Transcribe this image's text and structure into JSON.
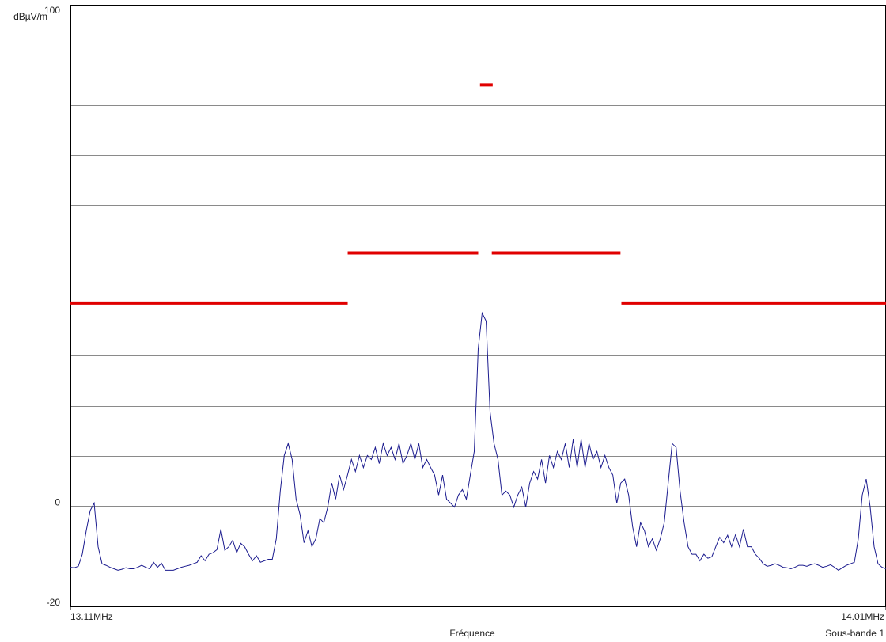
{
  "chart_data": {
    "type": "line",
    "y_unit": "dBµV/m",
    "x_label": "Fréquence",
    "subband": "Sous-bande 1",
    "xlim": [
      13.11,
      14.01
    ],
    "xticks": [
      {
        "value": 13.11,
        "label": "13.11MHz"
      },
      {
        "value": 14.01,
        "label": "14.01MHz"
      }
    ],
    "ylim": [
      -20,
      100
    ],
    "yticks": [
      -20,
      0,
      100
    ],
    "ygrid": [
      -20,
      -10,
      0,
      10,
      20,
      30,
      40,
      50,
      60,
      70,
      80,
      90,
      100
    ],
    "grid": true,
    "series": [
      {
        "name": "Mesure",
        "color": "#1c1c8f",
        "values": [
          -12.2,
          -12.3,
          -12.0,
          -9.6,
          -4.9,
          -0.9,
          0.6,
          -8.1,
          -11.5,
          -11.8,
          -12.2,
          -12.5,
          -12.8,
          -12.6,
          -12.3,
          -12.5,
          -12.5,
          -12.2,
          -11.8,
          -12.2,
          -12.5,
          -11.2,
          -12.2,
          -11.4,
          -12.8,
          -12.8,
          -12.8,
          -12.5,
          -12.2,
          -12.0,
          -11.8,
          -11.5,
          -11.2,
          -9.9,
          -10.9,
          -9.6,
          -9.3,
          -8.7,
          -4.6,
          -8.8,
          -8.1,
          -6.8,
          -9.3,
          -7.4,
          -8.1,
          -9.6,
          -10.9,
          -9.9,
          -11.2,
          -10.9,
          -10.6,
          -10.6,
          -6.5,
          3.0,
          10.1,
          12.5,
          9.3,
          1.4,
          -1.7,
          -7.3,
          -4.9,
          -8.1,
          -6.5,
          -2.5,
          -3.3,
          -0.2,
          4.6,
          1.4,
          6.2,
          3.3,
          6.2,
          9.3,
          6.9,
          10.1,
          7.7,
          10.1,
          9.3,
          11.7,
          8.5,
          12.5,
          10.1,
          11.7,
          9.3,
          12.5,
          8.5,
          10.1,
          12.5,
          9.3,
          12.5,
          7.7,
          9.3,
          7.7,
          6.2,
          2.2,
          6.2,
          1.4,
          0.6,
          -0.2,
          2.2,
          3.3,
          1.4,
          6.2,
          10.9,
          31.4,
          38.5,
          36.9,
          18.8,
          12.5,
          9.3,
          2.2,
          3.0,
          2.2,
          -0.2,
          2.2,
          3.8,
          -0.2,
          4.6,
          6.9,
          5.4,
          9.3,
          4.6,
          10.1,
          7.7,
          10.9,
          9.3,
          12.5,
          7.7,
          13.3,
          7.7,
          13.3,
          7.7,
          12.5,
          9.3,
          10.9,
          7.7,
          10.1,
          7.7,
          6.2,
          0.6,
          4.6,
          5.4,
          2.2,
          -4.1,
          -8.1,
          -3.3,
          -4.9,
          -8.1,
          -6.5,
          -8.8,
          -6.5,
          -3.3,
          4.6,
          12.5,
          11.7,
          3.0,
          -3.3,
          -8.1,
          -9.6,
          -9.6,
          -10.9,
          -9.6,
          -10.4,
          -10.1,
          -8.1,
          -6.2,
          -7.3,
          -5.8,
          -8.1,
          -5.7,
          -8.1,
          -4.6,
          -8.1,
          -8.1,
          -9.6,
          -10.4,
          -11.5,
          -12.0,
          -11.8,
          -11.5,
          -11.8,
          -12.2,
          -12.3,
          -12.5,
          -12.2,
          -11.8,
          -11.8,
          -12.0,
          -11.7,
          -11.5,
          -11.8,
          -12.2,
          -12.0,
          -11.7,
          -12.2,
          -12.8,
          -12.3,
          -11.8,
          -11.5,
          -11.2,
          -6.5,
          2.2,
          5.4,
          -0.2,
          -8.1,
          -11.5,
          -12.2,
          -12.5
        ]
      }
    ],
    "limit_color": "#e00000",
    "limit_lines": [
      {
        "x": [
          13.11,
          13.416
        ],
        "value": 40.5
      },
      {
        "x": [
          13.416,
          13.56
        ],
        "value": 50.5
      },
      {
        "x": [
          13.562,
          13.576
        ],
        "value": 84
      },
      {
        "x": [
          13.575,
          13.717
        ],
        "value": 50.5
      },
      {
        "x": [
          13.718,
          14.01
        ],
        "value": 40.5
      }
    ]
  }
}
